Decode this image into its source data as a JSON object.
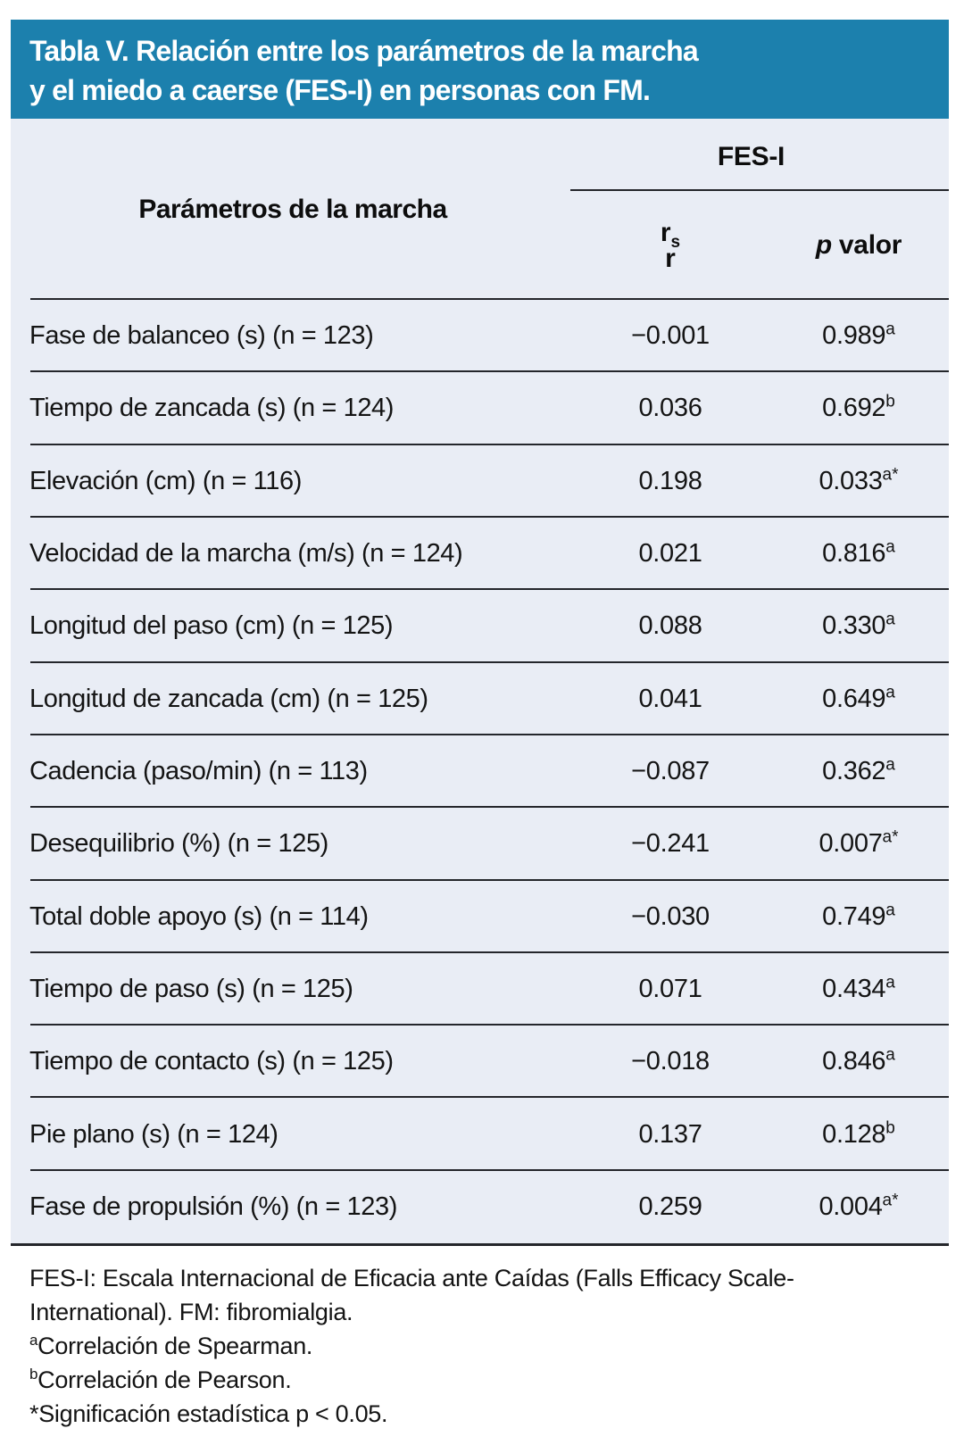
{
  "title": {
    "lines": [
      "Tabla V. Relación entre los parámetros de la marcha",
      "y el miedo a caerse (FES-I) en personas con FM."
    ]
  },
  "table": {
    "col1_header": "Parámetros de la marcha",
    "group_header": "FES-I",
    "col2_header": {
      "r_spearman": "r",
      "sub": "s",
      "r_pearson": "r"
    },
    "col3_header": {
      "p": "p",
      "rest": " valor"
    },
    "rows": [
      {
        "param": "Fase de balanceo (s) (n = 123)",
        "r": "−0.001",
        "p": "0.989",
        "sup": "a"
      },
      {
        "param": "Tiempo de zancada (s) (n = 124)",
        "r": "0.036",
        "p": "0.692",
        "sup": "b"
      },
      {
        "param": "Elevación (cm) (n = 116)",
        "r": "0.198",
        "p": "0.033",
        "sup": "a*"
      },
      {
        "param": "Velocidad de la marcha (m/s) (n = 124)",
        "r": "0.021",
        "p": "0.816",
        "sup": "a"
      },
      {
        "param": "Longitud del paso (cm) (n = 125)",
        "r": "0.088",
        "p": "0.330",
        "sup": "a"
      },
      {
        "param": "Longitud de zancada (cm) (n = 125)",
        "r": "0.041",
        "p": "0.649",
        "sup": "a"
      },
      {
        "param": "Cadencia (paso/min) (n = 113)",
        "r": "−0.087",
        "p": "0.362",
        "sup": "a"
      },
      {
        "param": "Desequilibrio (%) (n = 125)",
        "r": "−0.241",
        "p": "0.007",
        "sup": "a*"
      },
      {
        "param": "Total doble apoyo (s) (n = 114)",
        "r": "−0.030",
        "p": "0.749",
        "sup": "a"
      },
      {
        "param": "Tiempo de paso (s) (n = 125)",
        "r": "0.071",
        "p": "0.434",
        "sup": "a"
      },
      {
        "param": "Tiempo de contacto (s) (n = 125)",
        "r": "−0.018",
        "p": "0.846",
        "sup": "a"
      },
      {
        "param": "Pie plano (s) (n = 124)",
        "r": "0.137",
        "p": "0.128",
        "sup": "b"
      },
      {
        "param": "Fase de propulsión (%) (n = 123)",
        "r": "0.259",
        "p": "0.004",
        "sup": "a*"
      }
    ]
  },
  "footnotes": [
    {
      "sup": "",
      "text": "FES-I: Escala Internacional de Eficacia ante Caídas (Falls Efficacy Scale-International). FM: fibromialgia."
    },
    {
      "sup": "a",
      "text": "Correlación de Spearman."
    },
    {
      "sup": "b",
      "text": "Correlación de Pearson."
    },
    {
      "sup": "",
      "text": "*Significación estadística p < 0.05."
    }
  ],
  "colors": {
    "header_bg": "#1c80ad",
    "body_bg": "#e9edf5",
    "line": "#24262b",
    "title_text": "#ffffff",
    "body_text": "#141414"
  }
}
